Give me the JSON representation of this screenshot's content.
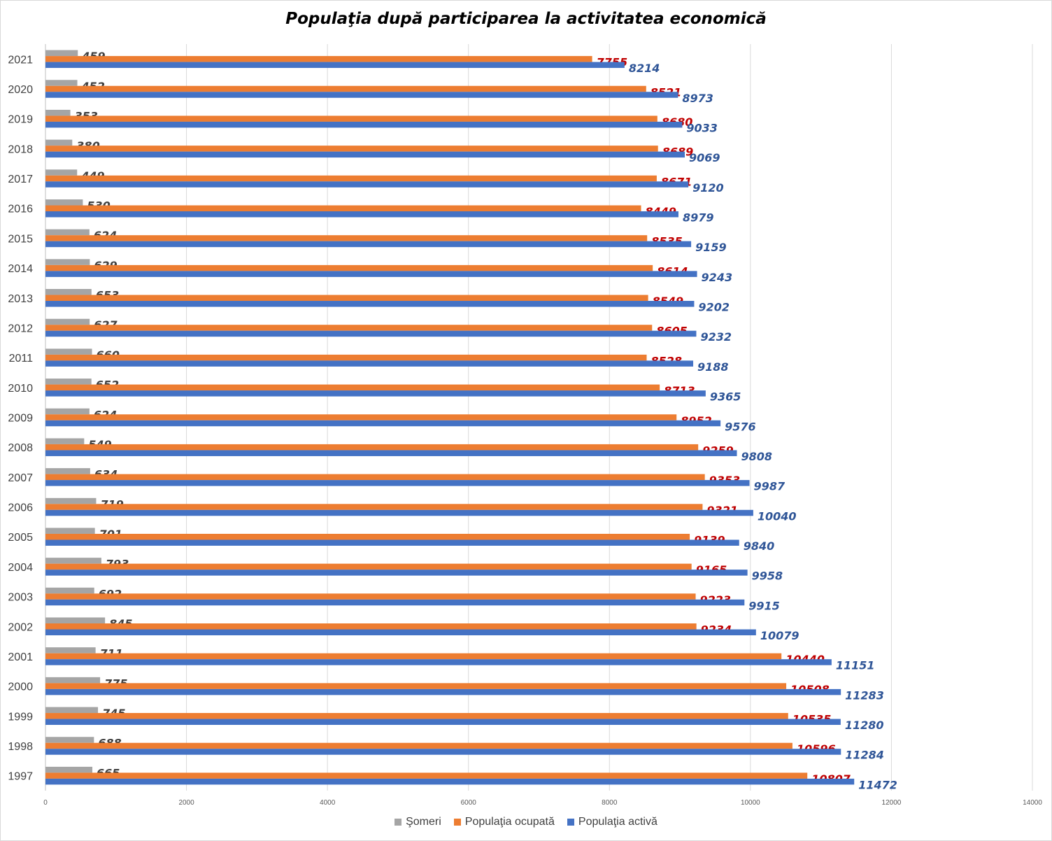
{
  "chart_data": {
    "type": "bar",
    "orientation": "horizontal",
    "title": "Populaţia după participarea la activitatea economică",
    "categories": [
      "2021",
      "2020",
      "2019",
      "2018",
      "2017",
      "2016",
      "2015",
      "2014",
      "2013",
      "2012",
      "2011",
      "2010",
      "2009",
      "2008",
      "2007",
      "2006",
      "2005",
      "2004",
      "2003",
      "2002",
      "2001",
      "2000",
      "1999",
      "1998",
      "1997"
    ],
    "series": [
      {
        "name": "Şomeri",
        "color": "#a5a5a5",
        "label_color": "#404040",
        "values": [
          459,
          452,
          353,
          380,
          449,
          530,
          624,
          629,
          653,
          627,
          660,
          652,
          624,
          549,
          634,
          719,
          701,
          793,
          692,
          845,
          711,
          775,
          745,
          688,
          665
        ]
      },
      {
        "name": "Populaţia ocupată",
        "color": "#ed7d31",
        "label_color": "#c00000",
        "values": [
          7755,
          8521,
          8680,
          8689,
          8671,
          8449,
          8535,
          8614,
          8549,
          8605,
          8528,
          8713,
          8952,
          9259,
          9353,
          9321,
          9139,
          9165,
          9223,
          9234,
          10440,
          10508,
          10535,
          10596,
          10807
        ]
      },
      {
        "name": "Populaţia activă",
        "color": "#4472c4",
        "label_color": "#2f5597",
        "values": [
          8214,
          8973,
          9033,
          9069,
          9120,
          8979,
          9159,
          9243,
          9202,
          9232,
          9188,
          9365,
          9576,
          9808,
          9987,
          10040,
          9840,
          9958,
          9915,
          10079,
          11151,
          11283,
          11280,
          11284,
          11472
        ]
      }
    ],
    "xlim": [
      0,
      14000
    ],
    "xticks": [
      "0",
      "2000",
      "4000",
      "6000",
      "8000",
      "10000",
      "12000",
      "14000"
    ],
    "grid": true,
    "legend_position": "bottom"
  }
}
